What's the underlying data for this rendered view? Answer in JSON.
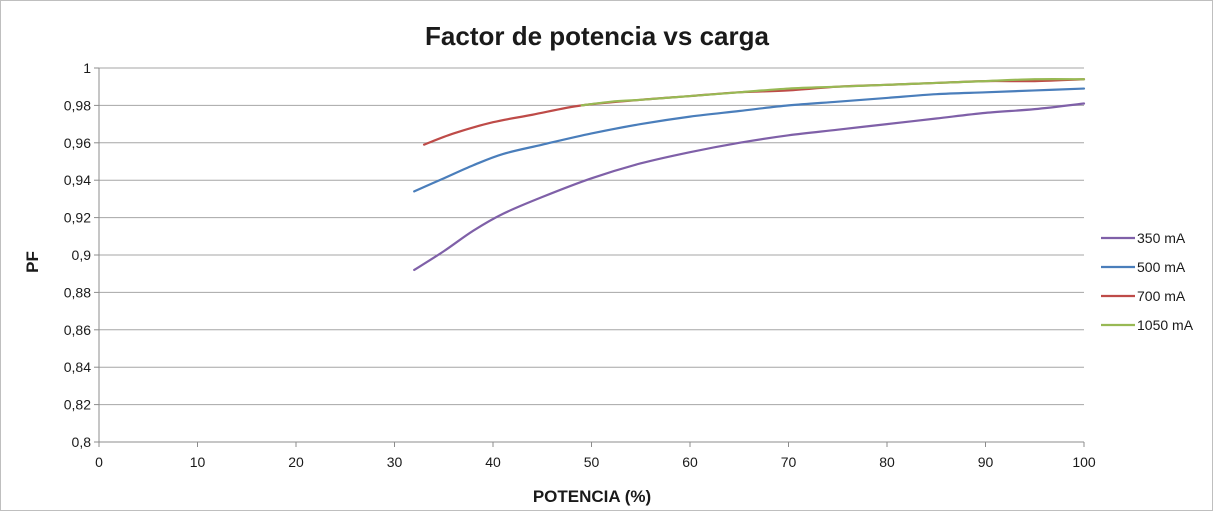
{
  "chart_data": {
    "type": "line",
    "title": "Factor de potencia vs carga",
    "xlabel": "POTENCIA (%)",
    "ylabel": "PF",
    "xlim": [
      0,
      100
    ],
    "ylim": [
      0.8,
      1.0
    ],
    "x_ticks": [
      0,
      10,
      20,
      30,
      40,
      50,
      60,
      70,
      80,
      90,
      100
    ],
    "y_ticks": [
      "0,8",
      "0,82",
      "0,84",
      "0,86",
      "0,88",
      "0,9",
      "0,92",
      "0,94",
      "0,96",
      "0,98",
      "1"
    ],
    "grid": true,
    "legend_position": "right",
    "series": [
      {
        "name": "350 mA",
        "color": "#7f60a8",
        "points": [
          [
            32,
            0.892
          ],
          [
            35,
            0.902
          ],
          [
            38,
            0.913
          ],
          [
            41,
            0.922
          ],
          [
            45,
            0.931
          ],
          [
            50,
            0.941
          ],
          [
            55,
            0.949
          ],
          [
            60,
            0.955
          ],
          [
            65,
            0.96
          ],
          [
            70,
            0.964
          ],
          [
            75,
            0.967
          ],
          [
            80,
            0.97
          ],
          [
            85,
            0.973
          ],
          [
            90,
            0.976
          ],
          [
            95,
            0.978
          ],
          [
            100,
            0.981
          ]
        ]
      },
      {
        "name": "500 mA",
        "color": "#4a7ebb",
        "points": [
          [
            32,
            0.934
          ],
          [
            35,
            0.941
          ],
          [
            38,
            0.948
          ],
          [
            41,
            0.954
          ],
          [
            45,
            0.959
          ],
          [
            50,
            0.965
          ],
          [
            55,
            0.97
          ],
          [
            60,
            0.974
          ],
          [
            65,
            0.977
          ],
          [
            70,
            0.98
          ],
          [
            75,
            0.982
          ],
          [
            80,
            0.984
          ],
          [
            85,
            0.986
          ],
          [
            90,
            0.987
          ],
          [
            95,
            0.988
          ],
          [
            100,
            0.989
          ]
        ]
      },
      {
        "name": "700 mA",
        "color": "#be4b48",
        "points": [
          [
            33,
            0.959
          ],
          [
            36,
            0.965
          ],
          [
            40,
            0.971
          ],
          [
            44,
            0.975
          ],
          [
            49,
            0.98
          ],
          [
            55,
            0.983
          ],
          [
            60,
            0.985
          ],
          [
            65,
            0.987
          ],
          [
            70,
            0.988
          ],
          [
            75,
            0.99
          ],
          [
            80,
            0.991
          ],
          [
            85,
            0.992
          ],
          [
            90,
            0.993
          ],
          [
            95,
            0.993
          ],
          [
            100,
            0.994
          ]
        ]
      },
      {
        "name": "1050 mA",
        "color": "#98b954",
        "points": [
          [
            49,
            0.98
          ],
          [
            52,
            0.982
          ],
          [
            55,
            0.983
          ],
          [
            60,
            0.985
          ],
          [
            65,
            0.987
          ],
          [
            70,
            0.989
          ],
          [
            75,
            0.99
          ],
          [
            80,
            0.991
          ],
          [
            85,
            0.992
          ],
          [
            90,
            0.993
          ],
          [
            95,
            0.994
          ],
          [
            100,
            0.994
          ]
        ]
      }
    ]
  }
}
